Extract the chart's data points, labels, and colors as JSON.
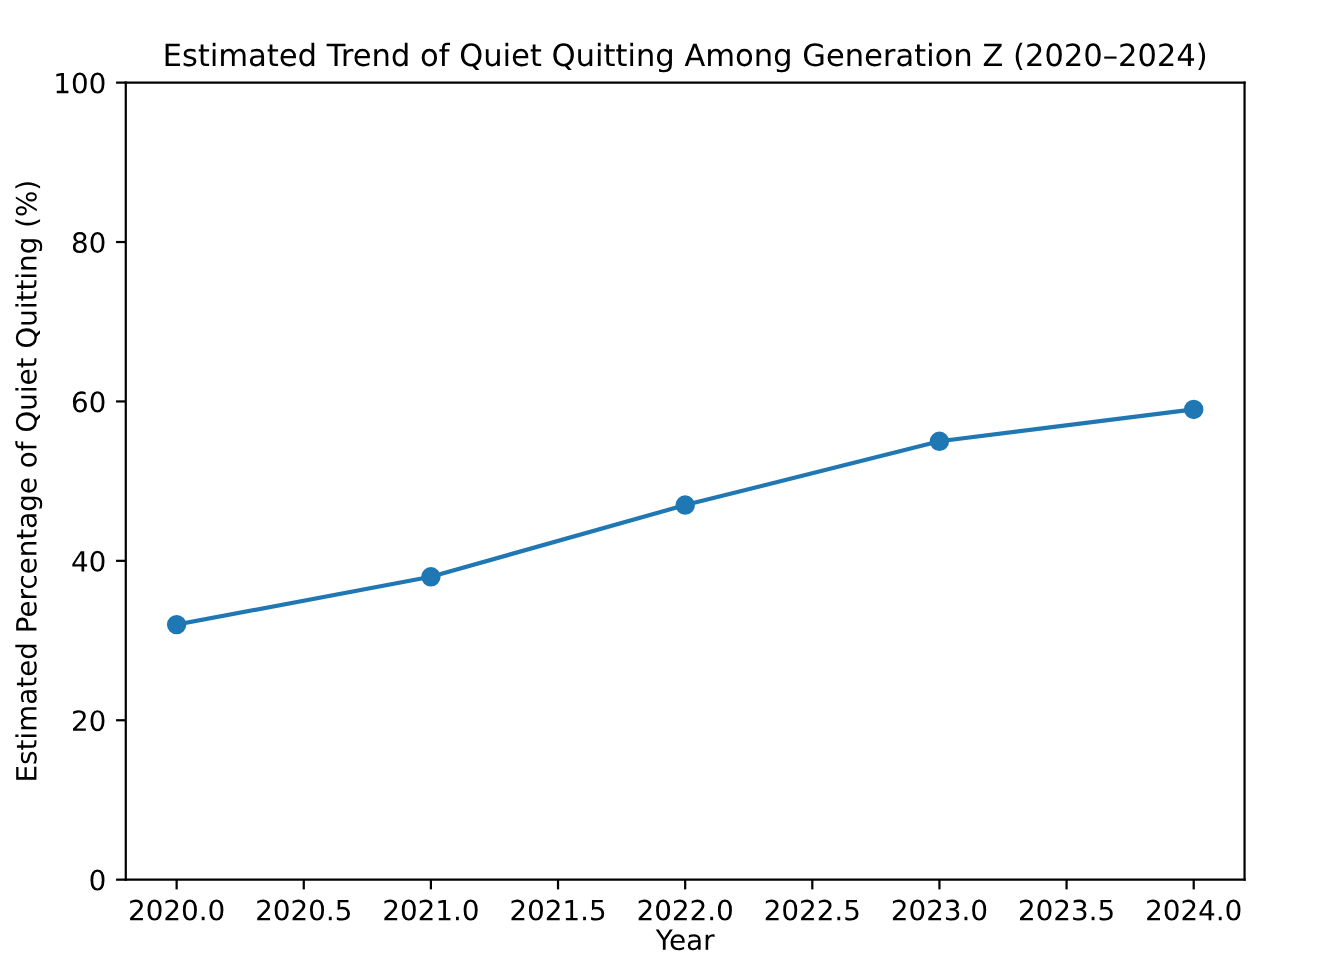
{
  "chart_data": {
    "type": "line",
    "title": "Estimated Trend of Quiet Quitting Among Generation Z (2020–2024)",
    "xlabel": "Year",
    "ylabel": "Estimated Percentage of Quiet Quitting (%)",
    "x": [
      2020,
      2021,
      2022,
      2023,
      2024
    ],
    "series": [
      {
        "color": "#1f77b4",
        "values": [
          32,
          38,
          47,
          55,
          59
        ]
      }
    ],
    "xlim": [
      2019.8,
      2024.2
    ],
    "xticks": [
      {
        "value": 2020,
        "label": "2020.0"
      },
      {
        "value": 2020.5,
        "label": "2020.5"
      },
      {
        "value": 2021,
        "label": "2021.0"
      },
      {
        "value": 2021.5,
        "label": "2021.5"
      },
      {
        "value": 2022,
        "label": "2022.0"
      },
      {
        "value": 2022.5,
        "label": "2022.5"
      },
      {
        "value": 2023,
        "label": "2023.0"
      },
      {
        "value": 2023.5,
        "label": "2023.5"
      },
      {
        "value": 2024,
        "label": "2024.0"
      }
    ],
    "ylim": [
      0,
      100
    ],
    "yticks": [
      0,
      20,
      40,
      60,
      80,
      100
    ],
    "marker": "circle",
    "line_style": "solid"
  }
}
